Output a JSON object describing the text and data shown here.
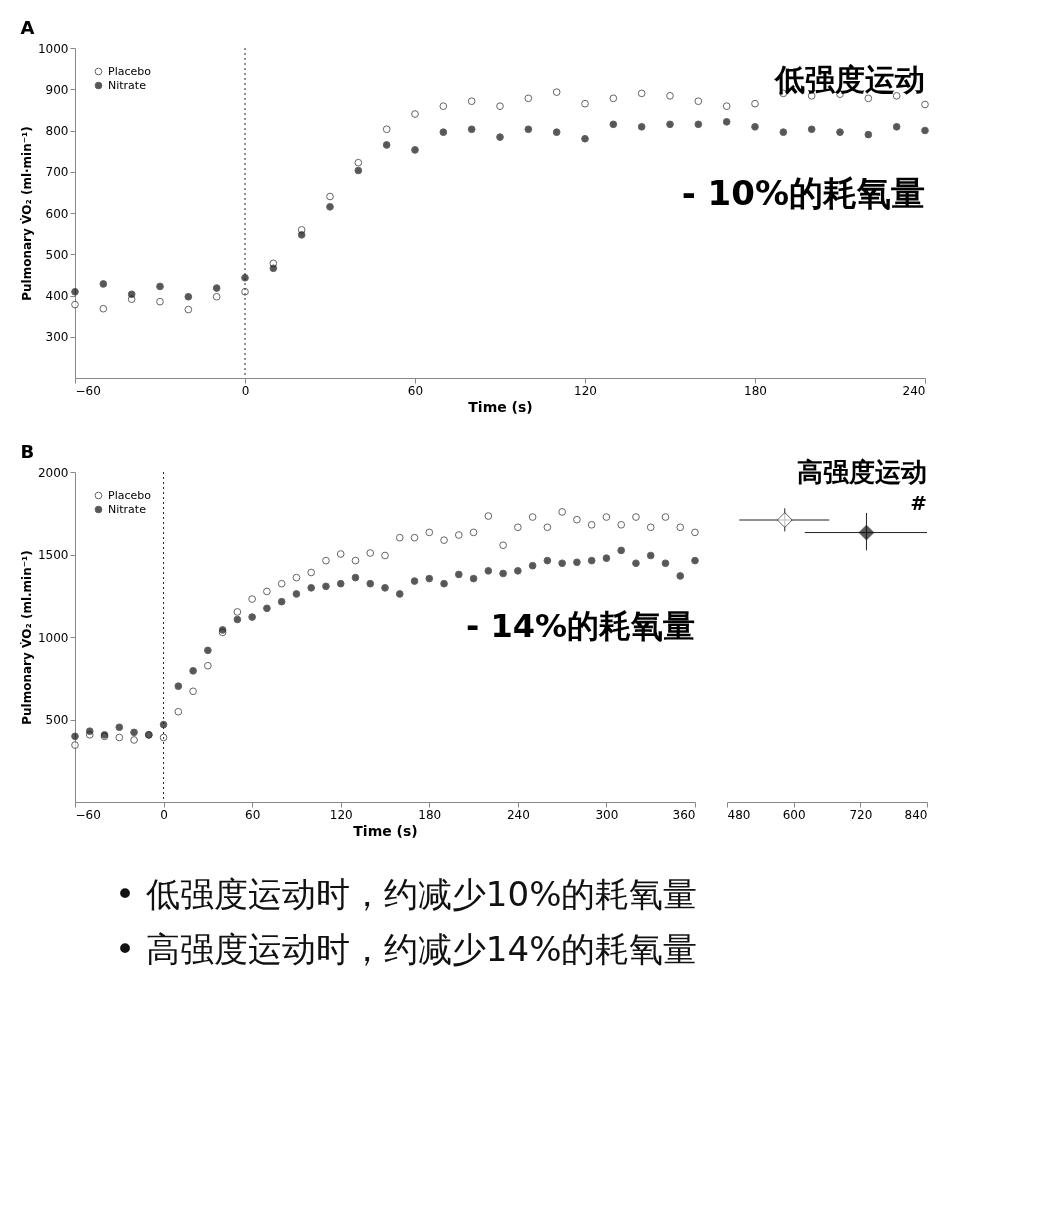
{
  "chart_data": [
    {
      "type": "scatter",
      "title": "A",
      "xlabel": "Time (s)",
      "ylabel": "Pulmonary V̇O₂ (ml·min⁻¹)",
      "xlim": [
        -60,
        240
      ],
      "xticks": [
        -60,
        0,
        60,
        120,
        180,
        240
      ],
      "ylim": [
        200,
        1000
      ],
      "yticks": [
        300,
        400,
        500,
        600,
        700,
        800,
        900,
        {
          "value": 1000,
          "label": "1000"
        }
      ],
      "marker": "circle",
      "legend": "top left",
      "x": [
        -60,
        -50,
        -40,
        -30,
        -20,
        -10,
        0,
        10,
        20,
        30,
        40,
        50,
        60,
        70,
        80,
        90,
        100,
        110,
        120,
        130,
        140,
        150,
        160,
        170,
        180,
        190,
        200,
        210,
        220,
        230,
        240
      ],
      "series": [
        {
          "name": "Placebo",
          "color": "#ffffff",
          "values": [
            378,
            368,
            391,
            385,
            366,
            397,
            409,
            478,
            559,
            640,
            722,
            803,
            840,
            859,
            871,
            859,
            878,
            893,
            865,
            878,
            890,
            884,
            871,
            859,
            865,
            890,
            884,
            888,
            878,
            884,
            863
          ]
        },
        {
          "name": "Nitrate",
          "color": "#111111",
          "values": [
            409,
            428,
            403,
            422,
            397,
            418,
            443,
            466,
            547,
            615,
            703,
            765,
            753,
            796,
            803,
            784,
            803,
            796,
            780,
            815,
            809,
            815,
            815,
            821,
            809,
            796,
            803,
            796,
            790,
            809,
            800
          ]
        }
      ],
      "ref_lines": [
        {
          "axis": "x",
          "value": 0,
          "line_style": "dotted"
        }
      ],
      "annotations": [
        "低强度运动",
        "- 10%的耗氧量"
      ]
    },
    {
      "type": "scatter",
      "title": "B",
      "xlabel": "Time (s)",
      "ylabel": "Pulmonary V̇O₂ (ml.min⁻¹)",
      "xlim": [
        -60,
        360
      ],
      "xticks": [
        -60,
        0,
        60,
        120,
        180,
        240,
        300,
        360
      ],
      "ylim": [
        0,
        2000
      ],
      "yticks": [
        500,
        {
          "value": 1000,
          "label": "1000"
        },
        {
          "value": 1500,
          "label": "1500"
        },
        {
          "value": 2000,
          "label": "2000"
        }
      ],
      "marker": "circle",
      "legend": "top left",
      "x": [
        -60,
        -50,
        -40,
        -30,
        -20,
        -10,
        0,
        10,
        20,
        30,
        40,
        50,
        60,
        70,
        80,
        90,
        100,
        110,
        120,
        130,
        140,
        150,
        160,
        170,
        180,
        190,
        200,
        210,
        220,
        230,
        240,
        250,
        260,
        270,
        280,
        290,
        300,
        310,
        320,
        330,
        340,
        350,
        360
      ],
      "series": [
        {
          "name": "Placebo",
          "color": "#ffffff",
          "values": [
            345,
            407,
            398,
            391,
            376,
            407,
            391,
            547,
            671,
            826,
            1028,
            1152,
            1230,
            1276,
            1323,
            1360,
            1391,
            1463,
            1503,
            1463,
            1509,
            1494,
            1602,
            1602,
            1634,
            1587,
            1618,
            1634,
            1733,
            1556,
            1665,
            1727,
            1665,
            1758,
            1711,
            1680,
            1727,
            1680,
            1727,
            1665,
            1727,
            1665,
            1634
          ]
        },
        {
          "name": "Nitrate",
          "color": "#111111",
          "values": [
            398,
            429,
            407,
            453,
            422,
            407,
            469,
            702,
            795,
            919,
            1043,
            1106,
            1121,
            1174,
            1214,
            1261,
            1298,
            1307,
            1323,
            1360,
            1323,
            1298,
            1261,
            1339,
            1354,
            1323,
            1379,
            1354,
            1401,
            1385,
            1401,
            1432,
            1463,
            1447,
            1453,
            1463,
            1478,
            1525,
            1447,
            1494,
            1447,
            1370,
            1463
          ]
        }
      ],
      "ref_lines": [
        {
          "axis": "x",
          "value": 0,
          "line_style": "dotted"
        }
      ],
      "annotations": [
        "- 14%的耗氧量"
      ]
    },
    {
      "type": "scatter",
      "xlim": [
        480,
        840
      ],
      "xticks": [
        480,
        600,
        720,
        840
      ],
      "ylim": [
        0,
        2000
      ],
      "marker": "diamond",
      "tick_labels": "x",
      "series": [
        {
          "color": "#ffffff",
          "x": [
            584
          ],
          "values": [
            1709
          ],
          "errors": [
            [
              1640,
              1780
            ]
          ],
          "xerrors": [
            [
              502,
              664
            ]
          ]
        },
        {
          "color": "#111111",
          "x": [
            731
          ],
          "values": [
            1633
          ],
          "errors": [
            [
              1525,
              1752
            ]
          ],
          "xerrors": [
            [
              620,
              840
            ]
          ]
        }
      ],
      "annotations": [
        "高强度运动",
        "#"
      ]
    },
    {
      "type": "other",
      "annotations": [
        "•   低强度运动时，约减少10%的耗氧量",
        "•   高强度运动时，约减少14%的耗氧量"
      ]
    }
  ]
}
